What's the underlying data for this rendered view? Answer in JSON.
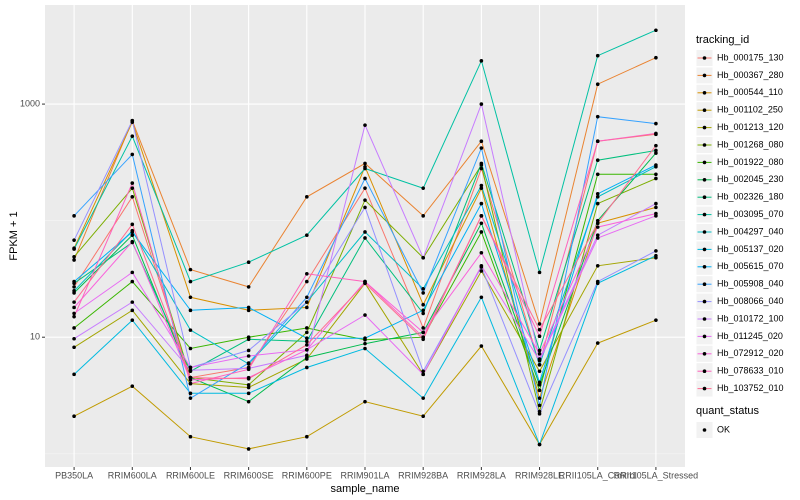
{
  "chart_data": {
    "type": "line",
    "x_label": "sample_name",
    "y_label": "FPKM + 1",
    "y_scale": "log",
    "categories": [
      "PB350LA",
      "RRIM600LA",
      "RRIM600LE",
      "RRIM600SE",
      "RRIM600PE",
      "RRIM901LA",
      "RRIM928BA",
      "RRIM928LA",
      "RRIM928LE",
      "RRII105LA_Control",
      "RRII105LA_Stressed"
    ],
    "ylim": [
      0.77,
      7080
    ],
    "yticks": [
      10,
      1000
    ],
    "minor_yticks": [
      1,
      100
    ],
    "grid": true,
    "legend_position": "right",
    "legend_title": "tracking_id",
    "point_legend_title": "quant_status",
    "point_legend_label": "OK",
    "point_color": "#000000",
    "series": [
      {
        "name": "Hb_000175_130",
        "color": "#F8766D",
        "values": [
          27,
          160,
          4.5,
          5.5,
          30,
          190,
          12,
          280,
          5.8,
          480,
          550
        ]
      },
      {
        "name": "Hb_000367_280",
        "color": "#EA8331",
        "values": [
          46,
          720,
          38,
          27,
          160,
          310,
          110,
          480,
          13,
          1480,
          2500
        ]
      },
      {
        "name": "Hb_000544_110",
        "color": "#D89000",
        "values": [
          58,
          700,
          22,
          17,
          18,
          290,
          19,
          190,
          3.0,
          95,
          130
        ]
      },
      {
        "name": "Hb_001102_250",
        "color": "#C09B00",
        "values": [
          2.1,
          3.8,
          1.4,
          1.1,
          1.4,
          2.8,
          2.1,
          8.4,
          1.2,
          8.9,
          14
        ]
      },
      {
        "name": "Hb_001213_120",
        "color": "#A3A500",
        "values": [
          8.2,
          17,
          4.0,
          3.7,
          6.5,
          29,
          4.8,
          37,
          5.1,
          41,
          48
        ]
      },
      {
        "name": "Hb_001268_080",
        "color": "#7CAE00",
        "values": [
          49,
          190,
          4.5,
          3.9,
          11,
          150,
          48,
          300,
          2.3,
          140,
          230
        ]
      },
      {
        "name": "Hb_001922_080",
        "color": "#39B600",
        "values": [
          12,
          30,
          8,
          10,
          12,
          9.5,
          10,
          80,
          3.5,
          250,
          250
        ]
      },
      {
        "name": "Hb_002045_230",
        "color": "#00BB4E",
        "values": [
          24,
          75,
          4.5,
          2.8,
          6.7,
          8.8,
          11,
          95,
          3.9,
          100,
          380
        ]
      },
      {
        "name": "Hb_002326_180",
        "color": "#00BF7D",
        "values": [
          29,
          65,
          5.1,
          9.6,
          9.2,
          71,
          16,
          310,
          7.7,
          330,
          400
        ]
      },
      {
        "name": "Hb_003095_070",
        "color": "#00C1A3",
        "values": [
          57,
          530,
          30,
          44,
          75,
          280,
          190,
          2350,
          36,
          2600,
          4300
        ]
      },
      {
        "name": "Hb_004297_040",
        "color": "#00BFC4",
        "values": [
          25,
          82,
          11.5,
          5.9,
          20,
          80,
          26,
          200,
          5.8,
          160,
          290
        ]
      },
      {
        "name": "Hb_005137_020",
        "color": "#00BAE0",
        "values": [
          4.8,
          14,
          3.3,
          3.3,
          5.5,
          8,
          3.0,
          22,
          1.2,
          29,
          50
        ]
      },
      {
        "name": "Hb_005615_070",
        "color": "#00B0F6",
        "values": [
          30,
          80,
          17,
          18,
          9.8,
          9.8,
          17,
          140,
          4.1,
          170,
          300
        ]
      },
      {
        "name": "Hb_005908_040",
        "color": "#35A2FF",
        "values": [
          110,
          370,
          3.0,
          6,
          22,
          230,
          24,
          420,
          2.6,
          780,
          680
        ]
      },
      {
        "name": "Hb_008066_040",
        "color": "#9590FF",
        "values": [
          68,
          720,
          5.5,
          7.7,
          20,
          130,
          5.1,
          40,
          2.2,
          30,
          55
        ]
      },
      {
        "name": "Hb_010172_100",
        "color": "#C77CFF",
        "values": [
          9.7,
          20,
          5.2,
          5.4,
          7,
          660,
          48,
          1000,
          6.5,
          75,
          140
        ]
      },
      {
        "name": "Hb_011245_020",
        "color": "#E76BF3",
        "values": [
          16,
          36,
          5.5,
          6.9,
          7.8,
          15.5,
          4.8,
          41,
          6.3,
          71,
          110
        ]
      },
      {
        "name": "Hb_072912_020",
        "color": "#FA62DB",
        "values": [
          18,
          66,
          4.3,
          4.5,
          7.8,
          30,
          11,
          53,
          7.2,
          88,
          115
        ]
      },
      {
        "name": "Hb_078633_010",
        "color": "#FF62BC",
        "values": [
          15,
          210,
          4.0,
          5.3,
          35,
          30,
          10,
          110,
          10.2,
          480,
          560
        ]
      },
      {
        "name": "Hb_103752_010",
        "color": "#FF6C91",
        "values": [
          20,
          93,
          4.5,
          4.4,
          8.6,
          29,
          9.6,
          110,
          11.6,
          95,
          440
        ]
      }
    ]
  }
}
